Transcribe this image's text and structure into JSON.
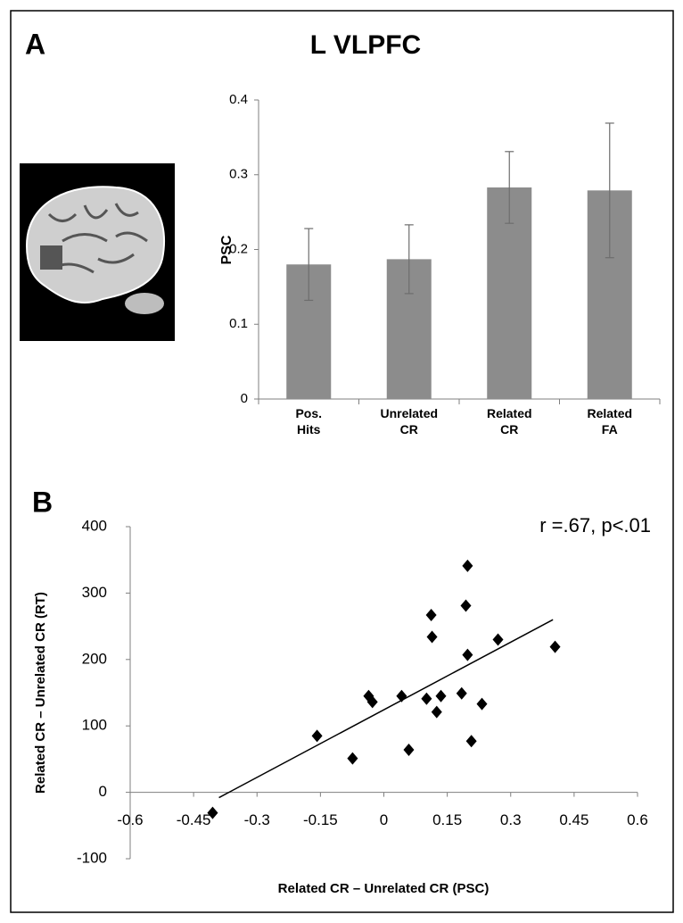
{
  "chart_data": [
    {
      "type": "bar",
      "panel_label": "A",
      "title": "L VLPFC",
      "ylabel": "PSC",
      "categories": [
        "Pos. Hits",
        "Unrelated CR",
        "Related CR",
        "Related FA"
      ],
      "values": [
        0.18,
        0.187,
        0.283,
        0.279
      ],
      "errors": [
        0.048,
        0.046,
        0.048,
        0.09
      ],
      "color": "#8c8c8c",
      "ylim": [
        0,
        0.4
      ],
      "yticks": [
        0,
        0.1,
        0.2,
        0.3,
        0.4
      ]
    },
    {
      "type": "scatter",
      "panel_label": "B",
      "annotation": "r =.67, p<.01",
      "xlabel": "Related CR – Unrelated CR (PSC)",
      "ylabel": "Related CR – Unrelated CR (RT)",
      "x": [
        -0.405,
        -0.158,
        -0.074,
        -0.036,
        -0.027,
        0.042,
        0.059,
        0.101,
        0.112,
        0.114,
        0.125,
        0.135,
        0.184,
        0.194,
        0.198,
        0.198,
        0.207,
        0.232,
        0.27,
        0.405
      ],
      "values": [
        -31,
        85,
        51,
        145,
        136,
        145,
        64,
        141,
        267,
        234,
        121,
        145,
        149,
        281,
        341,
        207,
        77,
        133,
        230,
        219
      ],
      "color": "#000000",
      "trendline": {
        "x": [
          -0.39,
          0.4
        ],
        "y": [
          -8,
          260
        ]
      },
      "xlim": [
        -0.6,
        0.6
      ],
      "xticks": [
        -0.6,
        -0.45,
        -0.3,
        -0.15,
        0,
        0.15,
        0.3,
        0.45,
        0.6
      ],
      "ylim": [
        -100,
        400
      ],
      "yticks": [
        -100,
        0,
        100,
        200,
        300,
        400
      ]
    }
  ]
}
